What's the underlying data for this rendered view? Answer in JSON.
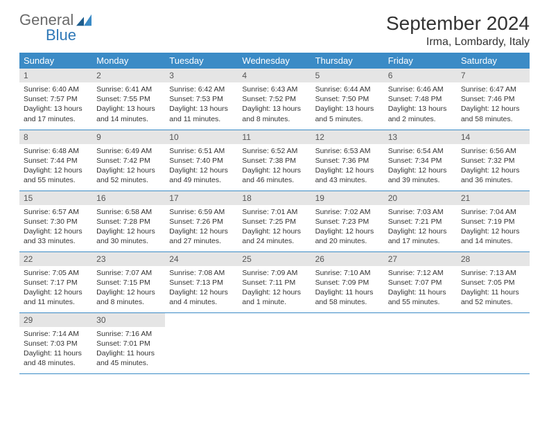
{
  "logo": {
    "text_top": "General",
    "text_bottom": "Blue",
    "gray": "#6a6a6a",
    "blue": "#2f78b7"
  },
  "title": "September 2024",
  "location": "Irma, Lombardy, Italy",
  "header_bg": "#3b8bc6",
  "header_fg": "#ffffff",
  "daynum_bg": "#e5e5e5",
  "border_color": "#3b8bc6",
  "weekdays": [
    "Sunday",
    "Monday",
    "Tuesday",
    "Wednesday",
    "Thursday",
    "Friday",
    "Saturday"
  ],
  "days": [
    {
      "n": 1,
      "sunrise": "6:40 AM",
      "sunset": "7:57 PM",
      "dl": "13 hours and 17 minutes."
    },
    {
      "n": 2,
      "sunrise": "6:41 AM",
      "sunset": "7:55 PM",
      "dl": "13 hours and 14 minutes."
    },
    {
      "n": 3,
      "sunrise": "6:42 AM",
      "sunset": "7:53 PM",
      "dl": "13 hours and 11 minutes."
    },
    {
      "n": 4,
      "sunrise": "6:43 AM",
      "sunset": "7:52 PM",
      "dl": "13 hours and 8 minutes."
    },
    {
      "n": 5,
      "sunrise": "6:44 AM",
      "sunset": "7:50 PM",
      "dl": "13 hours and 5 minutes."
    },
    {
      "n": 6,
      "sunrise": "6:46 AM",
      "sunset": "7:48 PM",
      "dl": "13 hours and 2 minutes."
    },
    {
      "n": 7,
      "sunrise": "6:47 AM",
      "sunset": "7:46 PM",
      "dl": "12 hours and 58 minutes."
    },
    {
      "n": 8,
      "sunrise": "6:48 AM",
      "sunset": "7:44 PM",
      "dl": "12 hours and 55 minutes."
    },
    {
      "n": 9,
      "sunrise": "6:49 AM",
      "sunset": "7:42 PM",
      "dl": "12 hours and 52 minutes."
    },
    {
      "n": 10,
      "sunrise": "6:51 AM",
      "sunset": "7:40 PM",
      "dl": "12 hours and 49 minutes."
    },
    {
      "n": 11,
      "sunrise": "6:52 AM",
      "sunset": "7:38 PM",
      "dl": "12 hours and 46 minutes."
    },
    {
      "n": 12,
      "sunrise": "6:53 AM",
      "sunset": "7:36 PM",
      "dl": "12 hours and 43 minutes."
    },
    {
      "n": 13,
      "sunrise": "6:54 AM",
      "sunset": "7:34 PM",
      "dl": "12 hours and 39 minutes."
    },
    {
      "n": 14,
      "sunrise": "6:56 AM",
      "sunset": "7:32 PM",
      "dl": "12 hours and 36 minutes."
    },
    {
      "n": 15,
      "sunrise": "6:57 AM",
      "sunset": "7:30 PM",
      "dl": "12 hours and 33 minutes."
    },
    {
      "n": 16,
      "sunrise": "6:58 AM",
      "sunset": "7:28 PM",
      "dl": "12 hours and 30 minutes."
    },
    {
      "n": 17,
      "sunrise": "6:59 AM",
      "sunset": "7:26 PM",
      "dl": "12 hours and 27 minutes."
    },
    {
      "n": 18,
      "sunrise": "7:01 AM",
      "sunset": "7:25 PM",
      "dl": "12 hours and 24 minutes."
    },
    {
      "n": 19,
      "sunrise": "7:02 AM",
      "sunset": "7:23 PM",
      "dl": "12 hours and 20 minutes."
    },
    {
      "n": 20,
      "sunrise": "7:03 AM",
      "sunset": "7:21 PM",
      "dl": "12 hours and 17 minutes."
    },
    {
      "n": 21,
      "sunrise": "7:04 AM",
      "sunset": "7:19 PM",
      "dl": "12 hours and 14 minutes."
    },
    {
      "n": 22,
      "sunrise": "7:05 AM",
      "sunset": "7:17 PM",
      "dl": "12 hours and 11 minutes."
    },
    {
      "n": 23,
      "sunrise": "7:07 AM",
      "sunset": "7:15 PM",
      "dl": "12 hours and 8 minutes."
    },
    {
      "n": 24,
      "sunrise": "7:08 AM",
      "sunset": "7:13 PM",
      "dl": "12 hours and 4 minutes."
    },
    {
      "n": 25,
      "sunrise": "7:09 AM",
      "sunset": "7:11 PM",
      "dl": "12 hours and 1 minute."
    },
    {
      "n": 26,
      "sunrise": "7:10 AM",
      "sunset": "7:09 PM",
      "dl": "11 hours and 58 minutes."
    },
    {
      "n": 27,
      "sunrise": "7:12 AM",
      "sunset": "7:07 PM",
      "dl": "11 hours and 55 minutes."
    },
    {
      "n": 28,
      "sunrise": "7:13 AM",
      "sunset": "7:05 PM",
      "dl": "11 hours and 52 minutes."
    },
    {
      "n": 29,
      "sunrise": "7:14 AM",
      "sunset": "7:03 PM",
      "dl": "11 hours and 48 minutes."
    },
    {
      "n": 30,
      "sunrise": "7:16 AM",
      "sunset": "7:01 PM",
      "dl": "11 hours and 45 minutes."
    }
  ],
  "labels": {
    "sunrise": "Sunrise:",
    "sunset": "Sunset:",
    "daylight": "Daylight:"
  },
  "first_weekday_offset": 0,
  "cells_per_row": 7
}
